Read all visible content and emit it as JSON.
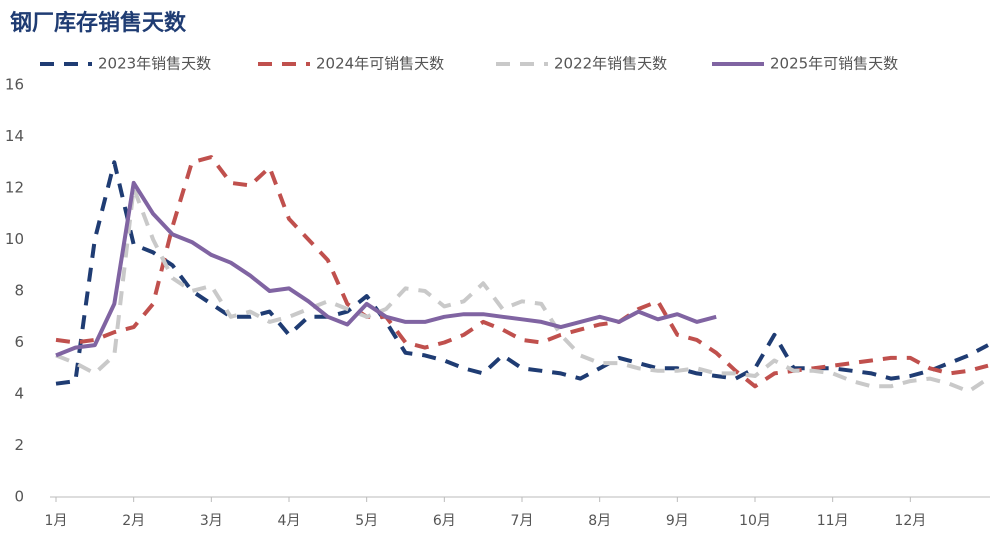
{
  "chart_data": {
    "type": "line",
    "title": "钢厂库存销售天数",
    "categories": [
      "1月",
      null,
      null,
      null,
      "2月",
      null,
      null,
      null,
      "3月",
      null,
      null,
      null,
      "4月",
      null,
      null,
      null,
      "5月",
      null,
      null,
      null,
      "6月",
      null,
      null,
      null,
      "7月",
      null,
      null,
      null,
      "8月",
      null,
      null,
      null,
      "9月",
      null,
      null,
      null,
      "10月",
      null,
      null,
      null,
      "11月",
      null,
      null,
      null,
      "12月",
      null,
      null,
      null,
      null
    ],
    "series": [
      {
        "name": "2023年销售天数",
        "color": "#1f3c73",
        "dashed": true,
        "values": [
          4.4,
          4.5,
          10,
          13,
          9.8,
          9.5,
          9,
          8,
          7.5,
          7,
          7,
          7.2,
          6.3,
          7,
          7,
          7.2,
          7.8,
          6.8,
          5.6,
          5.5,
          5.3,
          5,
          4.8,
          5.5,
          5,
          4.9,
          4.8,
          4.6,
          5,
          5.4,
          5.2,
          5,
          5,
          4.8,
          4.7,
          4.6,
          5,
          6.3,
          5,
          5,
          5,
          4.9,
          4.8,
          4.6,
          4.7,
          4.9,
          5.2,
          5.5,
          5.9
        ]
      },
      {
        "name": "2024年可销售天数",
        "color": "#c0504d",
        "dashed": true,
        "values": [
          6.1,
          6,
          6.1,
          6.4,
          6.6,
          7.5,
          10.5,
          13,
          13.2,
          12.2,
          12.1,
          12.8,
          10.8,
          10,
          9.2,
          7.5,
          7,
          7,
          6,
          5.8,
          6,
          6.3,
          6.8,
          6.5,
          6.1,
          6,
          6.3,
          6.5,
          6.7,
          6.8,
          7.3,
          7.6,
          6.3,
          6.1,
          5.6,
          4.9,
          4.3,
          4.8,
          4.9,
          5,
          5.1,
          5.2,
          5.3,
          5.4,
          5.4,
          5,
          4.8,
          4.9,
          5.1
        ]
      },
      {
        "name": "2022年销售天数",
        "color": "#c9c9c9",
        "dashed": true,
        "values": [
          5.5,
          5.2,
          4.8,
          5.5,
          12,
          10,
          8.5,
          8,
          8.2,
          7,
          7.2,
          6.8,
          7,
          7.3,
          7.6,
          7.3,
          7,
          7.3,
          8.1,
          8,
          7.4,
          7.6,
          8.3,
          7.3,
          7.6,
          7.5,
          6.3,
          5.5,
          5.2,
          5.2,
          5,
          4.9,
          4.9,
          5,
          4.8,
          4.8,
          4.7,
          5.3,
          4.9,
          4.9,
          4.8,
          4.5,
          4.3,
          4.3,
          4.5,
          4.6,
          4.4,
          4.1,
          4.6
        ]
      },
      {
        "name": "2025年可销售天数",
        "color": "#8064a2",
        "dashed": false,
        "values": [
          5.5,
          5.8,
          5.9,
          7.5,
          12.2,
          11,
          10.2,
          9.9,
          9.4,
          9.1,
          8.6,
          8,
          8.1,
          7.6,
          7,
          6.7,
          7.5,
          7,
          6.8,
          6.8,
          7,
          7.1,
          7.1,
          7,
          6.9,
          6.8,
          6.6,
          6.8,
          7,
          6.8,
          7.2,
          6.9,
          7.1,
          6.8,
          7,
          null,
          null,
          null,
          null,
          null,
          null,
          null,
          null,
          null,
          null,
          null,
          null,
          null,
          null
        ]
      }
    ],
    "ylim": [
      0,
      16
    ],
    "yticks": [
      0,
      2,
      4,
      6,
      8,
      10,
      12,
      14,
      16
    ],
    "grid": false,
    "legend": "top"
  }
}
